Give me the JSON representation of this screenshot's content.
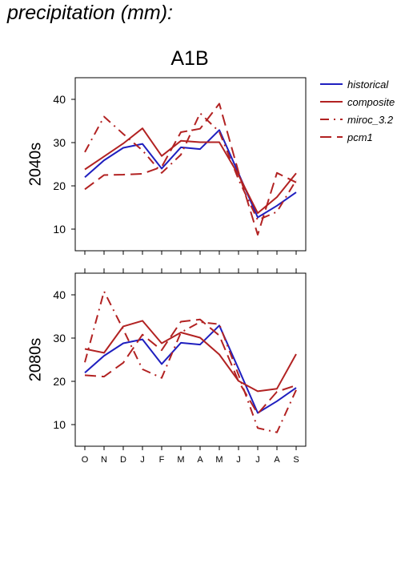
{
  "page_title": "precipitation (mm):",
  "chart_data": {
    "type": "line",
    "title": "A1B",
    "categories": [
      "O",
      "N",
      "D",
      "J",
      "F",
      "M",
      "A",
      "M",
      "J",
      "J",
      "A",
      "S"
    ],
    "ylim": [
      5,
      45
    ],
    "yticks": [
      10,
      20,
      30,
      40
    ],
    "grid": false,
    "legend_placement": "right",
    "legend": [
      {
        "name": "historical",
        "color": "#1f1fbf",
        "dash": "solid"
      },
      {
        "name": "composite",
        "color": "#b22222",
        "dash": "solid"
      },
      {
        "name": "miroc_3.2",
        "color": "#b22222",
        "dash": "dashdot"
      },
      {
        "name": "pcm1",
        "color": "#b22222",
        "dash": "longdash"
      }
    ],
    "panels": [
      {
        "label": "2040s",
        "series": [
          {
            "name": "historical",
            "values": [
              22.0,
              25.9,
              28.8,
              29.7,
              24.0,
              28.9,
              28.5,
              32.9,
              22.9,
              12.7,
              15.4,
              18.5
            ]
          },
          {
            "name": "composite",
            "values": [
              23.8,
              26.8,
              29.8,
              33.3,
              26.9,
              30.4,
              30.1,
              30.1,
              22.5,
              13.7,
              17.4,
              22.9
            ]
          },
          {
            "name": "miroc_3.2",
            "values": [
              27.8,
              36.0,
              32.0,
              28.2,
              23.0,
              27.2,
              36.8,
              32.5,
              21.5,
              12.1,
              14.0,
              21.3
            ]
          },
          {
            "name": "pcm1",
            "values": [
              19.2,
              22.5,
              22.6,
              22.8,
              24.4,
              32.4,
              33.2,
              39.0,
              23.2,
              8.7,
              23.0,
              20.8
            ]
          }
        ]
      },
      {
        "label": "2080s",
        "series": [
          {
            "name": "historical",
            "values": [
              22.0,
              25.9,
              28.8,
              29.7,
              24.0,
              28.9,
              28.5,
              32.9,
              22.9,
              12.7,
              15.4,
              18.5
            ]
          },
          {
            "name": "composite",
            "values": [
              27.5,
              26.6,
              32.7,
              34.0,
              28.8,
              31.3,
              30.1,
              26.2,
              20.1,
              17.7,
              18.3,
              26.3
            ]
          },
          {
            "name": "miroc_3.2",
            "values": [
              24.4,
              40.8,
              32.0,
              22.8,
              20.8,
              31.3,
              33.7,
              33.2,
              21.5,
              9.2,
              8.2,
              18.0
            ]
          },
          {
            "name": "pcm1",
            "values": [
              21.4,
              21.1,
              24.3,
              30.8,
              27.2,
              33.8,
              34.3,
              30.6,
              20.0,
              12.5,
              17.6,
              19.1
            ]
          }
        ]
      }
    ]
  }
}
